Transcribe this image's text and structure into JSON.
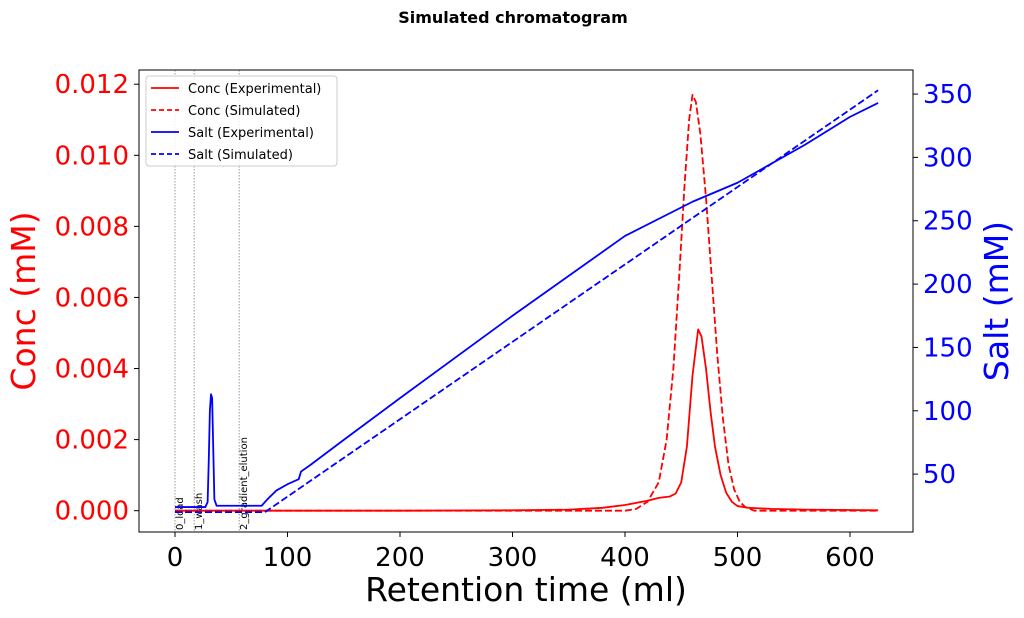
{
  "chart_data": {
    "type": "line",
    "title": "Simulated chromatogram",
    "xlabel": "Retention time (ml)",
    "ylabel_left": "Conc (mM)",
    "ylabel_right": "Salt (mM)",
    "xlim": [
      -32,
      656
    ],
    "ylim_left": [
      -0.0006,
      0.0124
    ],
    "ylim_right": [
      4.3,
      369
    ],
    "x_ticks": [
      0,
      100,
      200,
      300,
      400,
      500,
      600
    ],
    "x_tick_labels": [
      "0",
      "100",
      "200",
      "300",
      "400",
      "500",
      "600"
    ],
    "yleft_ticks": [
      0.0,
      0.002,
      0.004,
      0.006,
      0.008,
      0.01,
      0.012
    ],
    "yleft_tick_labels": [
      "0.000",
      "0.002",
      "0.004",
      "0.006",
      "0.008",
      "0.010",
      "0.012"
    ],
    "yright_ticks": [
      50,
      100,
      150,
      200,
      250,
      300,
      350
    ],
    "yright_tick_labels": [
      "50",
      "100",
      "150",
      "200",
      "250",
      "300",
      "350"
    ],
    "left_axis_color": "#ff0000",
    "right_axis_color": "#0000ff",
    "grid": false,
    "legend_position": "top-left",
    "phase_markers": [
      {
        "x": 0,
        "label": "0_load"
      },
      {
        "x": 17,
        "label": "1_wash"
      },
      {
        "x": 57,
        "label": "2_gradient_elution"
      }
    ],
    "series": [
      {
        "name": "Conc (Experimental)",
        "axis": "left",
        "color": "#ff0000",
        "dash": "solid",
        "points": [
          [
            0,
            0
          ],
          [
            200,
            0
          ],
          [
            300,
            1e-05
          ],
          [
            350,
            3e-05
          ],
          [
            380,
            8e-05
          ],
          [
            400,
            0.00016
          ],
          [
            420,
            0.00028
          ],
          [
            430,
            0.00036
          ],
          [
            440,
            0.0004
          ],
          [
            445,
            0.00048
          ],
          [
            450,
            0.0008
          ],
          [
            455,
            0.0018
          ],
          [
            460,
            0.0038
          ],
          [
            465,
            0.0051
          ],
          [
            468,
            0.0049
          ],
          [
            472,
            0.004
          ],
          [
            476,
            0.0028
          ],
          [
            480,
            0.0018
          ],
          [
            485,
            0.001
          ],
          [
            490,
            0.0005
          ],
          [
            495,
            0.00025
          ],
          [
            500,
            0.00013
          ],
          [
            510,
            8e-05
          ],
          [
            530,
            5e-05
          ],
          [
            560,
            3e-05
          ],
          [
            600,
            2e-05
          ],
          [
            625,
            1e-05
          ]
        ]
      },
      {
        "name": "Conc (Simulated)",
        "axis": "left",
        "color": "#ff0000",
        "dash": "dashed",
        "points": [
          [
            0,
            0
          ],
          [
            400,
            0
          ],
          [
            410,
            5e-05
          ],
          [
            420,
            0.00025
          ],
          [
            430,
            0.0008
          ],
          [
            437,
            0.002
          ],
          [
            443,
            0.004
          ],
          [
            448,
            0.0065
          ],
          [
            453,
            0.0092
          ],
          [
            457,
            0.011
          ],
          [
            460,
            0.0117
          ],
          [
            463,
            0.0115
          ],
          [
            467,
            0.0106
          ],
          [
            472,
            0.0088
          ],
          [
            477,
            0.0066
          ],
          [
            482,
            0.0044
          ],
          [
            487,
            0.0026
          ],
          [
            492,
            0.0013
          ],
          [
            497,
            0.0006
          ],
          [
            502,
            0.00025
          ],
          [
            507,
            0.0001
          ],
          [
            515,
            0
          ],
          [
            625,
            0
          ]
        ]
      },
      {
        "name": "Salt (Experimental)",
        "axis": "right",
        "color": "#0000ff",
        "dash": "solid",
        "points": [
          [
            0,
            24
          ],
          [
            27,
            24
          ],
          [
            29,
            28
          ],
          [
            30,
            60
          ],
          [
            31,
            100
          ],
          [
            32,
            113
          ],
          [
            33,
            110
          ],
          [
            34,
            70
          ],
          [
            35,
            30
          ],
          [
            37,
            25
          ],
          [
            77,
            25
          ],
          [
            82,
            30
          ],
          [
            90,
            37
          ],
          [
            100,
            42
          ],
          [
            110,
            46
          ],
          [
            112,
            52
          ],
          [
            120,
            57
          ],
          [
            150,
            77
          ],
          [
            200,
            110
          ],
          [
            300,
            175
          ],
          [
            400,
            238
          ],
          [
            460,
            265
          ],
          [
            500,
            280
          ],
          [
            560,
            310
          ],
          [
            600,
            332
          ],
          [
            625,
            343
          ]
        ]
      },
      {
        "name": "Salt (Simulated)",
        "axis": "right",
        "color": "#0000ff",
        "dash": "dashed",
        "points": [
          [
            0,
            20
          ],
          [
            80,
            20
          ],
          [
            625,
            353
          ]
        ]
      }
    ]
  }
}
